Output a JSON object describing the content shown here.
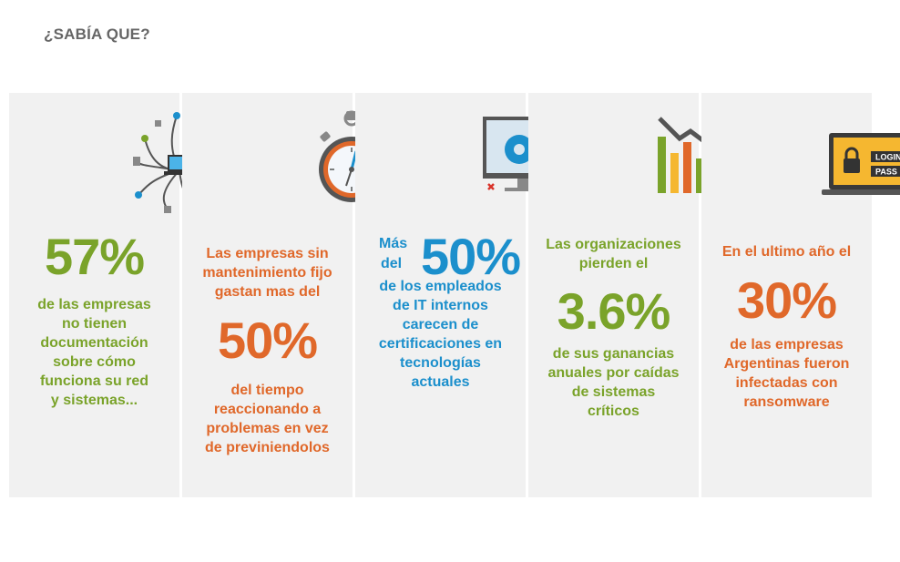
{
  "heading": "¿SABÍA QUE?",
  "colors": {
    "green": "#7aa32a",
    "orange": "#e0682a",
    "blue": "#1b8fcc",
    "card_bg": "#f1f1f1"
  },
  "cards": [
    {
      "icon": "network-laptop-icon",
      "stat": "57%",
      "lines": [
        "de las empresas",
        "no tienen",
        "documentación",
        "sobre cómo",
        "funciona su red",
        "y sistemas..."
      ]
    },
    {
      "icon": "stopwatch-icon",
      "before": [
        "Las empresas sin",
        "mantenimiento fijo",
        "gastan mas del"
      ],
      "stat": "50%",
      "after": [
        "del tiempo",
        "reaccionando a",
        "problemas en vez",
        "de previniendolos"
      ]
    },
    {
      "icon": "monitor-gears-icon",
      "prefix": [
        "Más",
        "del"
      ],
      "stat": "50%",
      "after": [
        "de los empleados",
        "de IT internos",
        "carecen de",
        "certificaciones en",
        "tecnologías",
        "actuales"
      ]
    },
    {
      "icon": "declining-bar-chart-icon",
      "before": [
        "Las organizaciones",
        "pierden el"
      ],
      "stat": "3.6%",
      "after": [
        "de sus ganancias",
        "anuales por caídas",
        "de sistemas",
        "críticos"
      ]
    },
    {
      "icon": "laptop-login-lock-icon",
      "icon_text": {
        "login": "LOGIN",
        "pass": "PASS"
      },
      "before": [
        "En el ultimo año el"
      ],
      "stat": "30%",
      "after": [
        "de las empresas",
        "Argentinas fueron",
        "infectadas con",
        "ransomware"
      ]
    }
  ]
}
